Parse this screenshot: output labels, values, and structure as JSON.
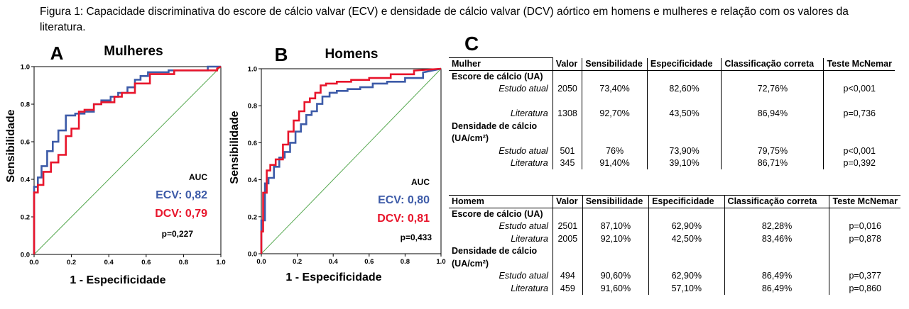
{
  "caption": "Figura 1: Capacidade discriminativa do escore de cálcio valvar (ECV) e densidade de cálcio valvar (DCV) aórtico em homens e mulheres e relação com os valores da literatura.",
  "chart_data": [
    {
      "type": "line",
      "panel_letter": "A",
      "title": "Mulheres",
      "xlabel": "1 - Especificidade",
      "ylabel": "Sensibilidade",
      "xlim": [
        0,
        1
      ],
      "ylim": [
        0,
        1
      ],
      "xticks": [
        "0.0",
        "0.2",
        "0.4",
        "0.6",
        "0.8",
        "1.0"
      ],
      "yticks": [
        "0.0",
        "0.2",
        "0.4",
        "0.6",
        "0.8",
        "1.0"
      ],
      "auc_header": "AUC",
      "auc_ecv": "ECV: 0,82",
      "auc_dcv": "DCV: 0,79",
      "p_value": "p=0,227",
      "colors": {
        "ecv": "#3d5ba8",
        "dcv": "#e8152b",
        "reference": "#55a84f"
      },
      "series": [
        {
          "key": "ecv",
          "x": [
            0,
            0,
            0.02,
            0.02,
            0.04,
            0.04,
            0.07,
            0.07,
            0.1,
            0.1,
            0.13,
            0.13,
            0.17,
            0.17,
            0.22,
            0.22,
            0.27,
            0.27,
            0.32,
            0.32,
            0.36,
            0.36,
            0.41,
            0.41,
            0.45,
            0.45,
            0.5,
            0.5,
            0.54,
            0.54,
            0.57,
            0.57,
            0.61,
            0.61,
            0.72,
            0.72,
            0.93,
            0.93,
            1.0
          ],
          "y": [
            0,
            0.36,
            0.36,
            0.41,
            0.41,
            0.47,
            0.47,
            0.55,
            0.55,
            0.6,
            0.6,
            0.66,
            0.66,
            0.74,
            0.74,
            0.75,
            0.75,
            0.76,
            0.76,
            0.8,
            0.8,
            0.82,
            0.82,
            0.84,
            0.84,
            0.86,
            0.86,
            0.89,
            0.89,
            0.93,
            0.93,
            0.95,
            0.95,
            0.97,
            0.97,
            0.98,
            0.98,
            1.0,
            1.0
          ]
        },
        {
          "key": "dcv",
          "x": [
            0,
            0,
            0.02,
            0.02,
            0.05,
            0.05,
            0.09,
            0.09,
            0.13,
            0.13,
            0.17,
            0.17,
            0.2,
            0.2,
            0.24,
            0.24,
            0.27,
            0.27,
            0.32,
            0.32,
            0.36,
            0.36,
            0.43,
            0.43,
            0.47,
            0.47,
            0.54,
            0.54,
            0.62,
            0.62,
            0.75,
            0.75,
            0.98,
            0.98,
            1.0
          ],
          "y": [
            0,
            0.33,
            0.33,
            0.37,
            0.37,
            0.44,
            0.44,
            0.49,
            0.49,
            0.53,
            0.53,
            0.63,
            0.63,
            0.67,
            0.67,
            0.76,
            0.76,
            0.77,
            0.77,
            0.8,
            0.8,
            0.81,
            0.81,
            0.84,
            0.84,
            0.86,
            0.86,
            0.91,
            0.91,
            0.96,
            0.96,
            0.98,
            0.98,
            0.99,
            1.0
          ]
        }
      ]
    },
    {
      "type": "line",
      "panel_letter": "B",
      "title": "Homens",
      "xlabel": "1 - Especificidade",
      "ylabel": "Sensibilidade",
      "xlim": [
        0,
        1
      ],
      "ylim": [
        0,
        1
      ],
      "xticks": [
        "0.0",
        "0.2",
        "0.4",
        "0.6",
        "0.8",
        "1.0"
      ],
      "yticks": [
        "0.0",
        "0.2",
        "0.4",
        "0.6",
        "0.8",
        "1.0"
      ],
      "auc_header": "AUC",
      "auc_ecv": "ECV: 0,80",
      "auc_dcv": "DCV: 0,81",
      "p_value": "p=0,433",
      "colors": {
        "ecv": "#3d5ba8",
        "dcv": "#e8152b",
        "reference": "#55a84f"
      },
      "series": [
        {
          "key": "ecv",
          "x": [
            0,
            0,
            0.02,
            0.02,
            0.04,
            0.04,
            0.07,
            0.07,
            0.1,
            0.1,
            0.13,
            0.13,
            0.16,
            0.16,
            0.19,
            0.19,
            0.22,
            0.22,
            0.25,
            0.25,
            0.28,
            0.28,
            0.31,
            0.31,
            0.34,
            0.34,
            0.38,
            0.38,
            0.42,
            0.42,
            0.48,
            0.48,
            0.55,
            0.55,
            0.62,
            0.62,
            0.7,
            0.7,
            0.8,
            0.8,
            0.9,
            0.9,
            1.0
          ],
          "y": [
            0,
            0.18,
            0.18,
            0.38,
            0.38,
            0.41,
            0.41,
            0.47,
            0.47,
            0.52,
            0.52,
            0.55,
            0.55,
            0.6,
            0.6,
            0.66,
            0.66,
            0.7,
            0.7,
            0.75,
            0.75,
            0.77,
            0.77,
            0.81,
            0.81,
            0.85,
            0.85,
            0.87,
            0.87,
            0.88,
            0.88,
            0.89,
            0.89,
            0.9,
            0.9,
            0.92,
            0.92,
            0.93,
            0.93,
            0.95,
            0.95,
            0.98,
            1.0
          ]
        },
        {
          "key": "dcv",
          "x": [
            0,
            0,
            0.01,
            0.01,
            0.03,
            0.03,
            0.05,
            0.05,
            0.08,
            0.08,
            0.12,
            0.12,
            0.15,
            0.15,
            0.18,
            0.18,
            0.21,
            0.21,
            0.24,
            0.24,
            0.27,
            0.27,
            0.3,
            0.3,
            0.33,
            0.33,
            0.36,
            0.36,
            0.42,
            0.42,
            0.5,
            0.5,
            0.6,
            0.6,
            0.72,
            0.72,
            0.85,
            0.85,
            1.0
          ],
          "y": [
            0,
            0.12,
            0.12,
            0.33,
            0.33,
            0.45,
            0.45,
            0.48,
            0.48,
            0.51,
            0.51,
            0.59,
            0.59,
            0.66,
            0.66,
            0.72,
            0.72,
            0.77,
            0.77,
            0.82,
            0.82,
            0.84,
            0.84,
            0.87,
            0.87,
            0.91,
            0.91,
            0.92,
            0.92,
            0.93,
            0.93,
            0.94,
            0.94,
            0.95,
            0.95,
            0.97,
            0.97,
            0.99,
            1.0
          ]
        }
      ]
    }
  ],
  "panel_c": {
    "letter": "C",
    "women": {
      "headers": [
        "Mulher",
        "Valor",
        "Sensibilidade",
        "Especificidade",
        "Classificação correta",
        "Teste McNemar"
      ],
      "groups": [
        {
          "title": [
            "Escore de cálcio (UA)"
          ],
          "rows": [
            {
              "label": "Estudo atual",
              "valor": "2050",
              "sens": "73,40%",
              "espec": "82,60%",
              "class": "72,76%",
              "mcnemar": "p<0,001"
            },
            {
              "label": "Literatura",
              "valor": "1308",
              "sens": "92,70%",
              "espec": "43,50%",
              "class": "86,94%",
              "mcnemar": "p=0,736"
            }
          ]
        },
        {
          "title": [
            "Densidade de cálcio",
            "(UA/cm²)"
          ],
          "rows": [
            {
              "label": "Estudo atual",
              "valor": "501",
              "sens": "76%",
              "espec": "73,90%",
              "class": "79,75%",
              "mcnemar": "p<0,001"
            },
            {
              "label": "Literatura",
              "valor": "345",
              "sens": "91,40%",
              "espec": "39,10%",
              "class": "86,71%",
              "mcnemar": "p=0,392"
            }
          ]
        }
      ]
    },
    "men": {
      "headers": [
        "Homem",
        "Valor",
        "Sensibilidade",
        "Especificidade",
        "Classificação correta",
        "Teste McNemar"
      ],
      "groups": [
        {
          "title": [
            "Escore de cálcio (UA)"
          ],
          "rows": [
            {
              "label": "Estudo atual",
              "valor": "2501",
              "sens": "87,10%",
              "espec": "62,90%",
              "class": "82,28%",
              "mcnemar": "p=0,016"
            },
            {
              "label": "Literatura",
              "valor": "2005",
              "sens": "92,10%",
              "espec": "42,50%",
              "class": "83,46%",
              "mcnemar": "p=0,878"
            }
          ]
        },
        {
          "title": [
            "Densidade de cálcio",
            "(UA/cm²)"
          ],
          "rows": [
            {
              "label": "Estudo atual",
              "valor": "494",
              "sens": "90,60%",
              "espec": "62,90%",
              "class": "86,49%",
              "mcnemar": "p=0,377"
            },
            {
              "label": "Literatura",
              "valor": "459",
              "sens": "91,60%",
              "espec": "57,10%",
              "class": "86,49%",
              "mcnemar": "p=0,860"
            }
          ]
        }
      ]
    }
  }
}
